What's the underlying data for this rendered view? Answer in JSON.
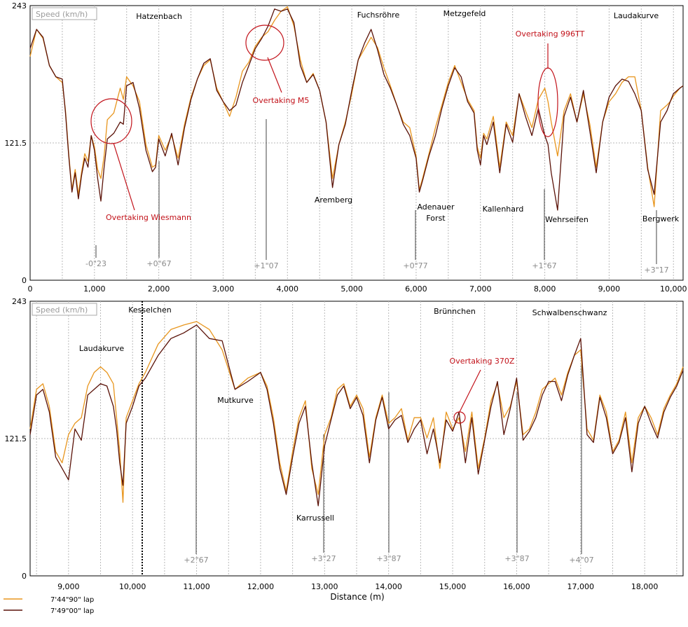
{
  "chart_data": [
    {
      "type": "line",
      "box_label": "Speed (km/h)",
      "ylim": [
        0,
        243
      ],
      "yticks": [
        0,
        121.5,
        243
      ],
      "xlim": [
        0,
        10150
      ],
      "xticks": [
        0,
        1000,
        2000,
        3000,
        4000,
        5000,
        6000,
        7000,
        8000,
        9000,
        10000
      ],
      "grid": "x-every-500-dotted-y-mid-dotted",
      "series": [
        {
          "name": "7'44\"90\" lap",
          "color": "#e8961e",
          "x": [
            0,
            100,
            200,
            300,
            400,
            500,
            550,
            600,
            650,
            700,
            750,
            800,
            850,
            900,
            950,
            1000,
            1050,
            1100,
            1150,
            1200,
            1300,
            1400,
            1450,
            1500,
            1600,
            1700,
            1800,
            1900,
            1950,
            2000,
            2100,
            2200,
            2300,
            2400,
            2500,
            2600,
            2700,
            2800,
            2900,
            3000,
            3100,
            3200,
            3300,
            3400,
            3500,
            3600,
            3700,
            3800,
            3900,
            4000,
            4100,
            4200,
            4300,
            4400,
            4500,
            4600,
            4700,
            4800,
            4900,
            5000,
            5100,
            5200,
            5300,
            5400,
            5500,
            5600,
            5700,
            5800,
            5900,
            6000,
            6050,
            6100,
            6200,
            6300,
            6400,
            6500,
            6600,
            6700,
            6800,
            6900,
            6950,
            7000,
            7050,
            7100,
            7200,
            7300,
            7400,
            7500,
            7600,
            7700,
            7800,
            7900,
            8000,
            8050,
            8100,
            8200,
            8300,
            8400,
            8500,
            8600,
            8700,
            8800,
            8900,
            9000,
            9100,
            9200,
            9300,
            9400,
            9500,
            9600,
            9700,
            9800,
            9900,
            9950,
            10000,
            10100,
            10150
          ],
          "y": [
            198,
            222,
            214,
            190,
            180,
            175,
            150,
            112,
            80,
            98,
            76,
            96,
            112,
            105,
            128,
            118,
            98,
            90,
            110,
            142,
            148,
            170,
            160,
            180,
            172,
            158,
            120,
            100,
            102,
            128,
            115,
            128,
            108,
            138,
            162,
            178,
            190,
            195,
            170,
            158,
            145,
            162,
            185,
            193,
            207,
            215,
            220,
            230,
            238,
            242,
            225,
            195,
            175,
            183,
            168,
            140,
            90,
            120,
            140,
            165,
            195,
            205,
            215,
            206,
            188,
            172,
            155,
            140,
            135,
            110,
            80,
            90,
            112,
            135,
            155,
            175,
            190,
            175,
            160,
            150,
            118,
            108,
            130,
            125,
            145,
            100,
            140,
            128,
            165,
            150,
            135,
            160,
            170,
            158,
            140,
            110,
            150,
            165,
            140,
            165,
            138,
            100,
            140,
            158,
            165,
            175,
            180,
            180,
            150,
            100,
            65,
            150,
            155,
            158,
            163,
            170,
            172
          ]
        },
        {
          "name": "7'49\"00\" lap",
          "color": "#5a1208",
          "x": [
            0,
            100,
            200,
            300,
            400,
            500,
            550,
            600,
            650,
            700,
            750,
            800,
            850,
            900,
            950,
            1000,
            1050,
            1100,
            1150,
            1200,
            1300,
            1400,
            1450,
            1500,
            1600,
            1700,
            1800,
            1900,
            1950,
            2000,
            2100,
            2200,
            2300,
            2400,
            2500,
            2600,
            2700,
            2800,
            2900,
            3000,
            3100,
            3200,
            3300,
            3400,
            3500,
            3600,
            3700,
            3800,
            3900,
            4000,
            4100,
            4200,
            4300,
            4400,
            4500,
            4600,
            4700,
            4800,
            4900,
            5000,
            5100,
            5200,
            5300,
            5400,
            5500,
            5600,
            5700,
            5800,
            5900,
            6000,
            6050,
            6100,
            6200,
            6300,
            6400,
            6500,
            6600,
            6700,
            6800,
            6900,
            6950,
            7000,
            7050,
            7100,
            7200,
            7300,
            7400,
            7500,
            7600,
            7700,
            7800,
            7900,
            8000,
            8050,
            8100,
            8200,
            8300,
            8400,
            8500,
            8600,
            8700,
            8800,
            8900,
            9000,
            9100,
            9200,
            9300,
            9400,
            9500,
            9600,
            9700,
            9800,
            9900,
            9950,
            10000,
            10100,
            10150
          ],
          "y": [
            205,
            222,
            215,
            190,
            180,
            178,
            148,
            110,
            78,
            95,
            72,
            93,
            108,
            100,
            128,
            115,
            90,
            70,
            100,
            125,
            130,
            140,
            138,
            172,
            175,
            152,
            115,
            96,
            100,
            125,
            110,
            130,
            102,
            135,
            160,
            178,
            192,
            196,
            168,
            158,
            150,
            155,
            175,
            190,
            205,
            214,
            225,
            240,
            238,
            240,
            228,
            190,
            175,
            182,
            168,
            140,
            82,
            120,
            138,
            168,
            195,
            210,
            222,
            204,
            182,
            170,
            155,
            138,
            128,
            108,
            78,
            88,
            110,
            128,
            152,
            172,
            188,
            180,
            158,
            148,
            115,
            102,
            128,
            120,
            140,
            95,
            138,
            122,
            165,
            145,
            128,
            152,
            128,
            120,
            95,
            62,
            145,
            162,
            140,
            168,
            132,
            95,
            140,
            162,
            172,
            178,
            176,
            165,
            150,
            98,
            76,
            140,
            150,
            158,
            165,
            170,
            172
          ]
        }
      ],
      "annotations": [
        {
          "text": "Overtaking Wiesmann"
        },
        {
          "text": "Overtaking M5"
        },
        {
          "text": "Overtaking 996TT"
        }
      ],
      "corners": [
        "Hatzenbach",
        "Fuchsröhre",
        "Metzgefeld",
        "Laudakurve",
        "Aremberg",
        "Adenauer",
        "Forst",
        "Kallenhard",
        "Wehrseifen",
        "Bergwerk"
      ],
      "deltas": [
        "-0\"23",
        "+0\"67",
        "+1\"07",
        "+0\"77",
        "+1\"67",
        "+3\"17"
      ]
    },
    {
      "type": "line",
      "box_label": "Speed (km/h)",
      "ylim": [
        0,
        243
      ],
      "yticks": [
        0,
        121.5,
        243
      ],
      "xlim": [
        8400,
        18600
      ],
      "xticks": [
        9000,
        10000,
        11000,
        12000,
        13000,
        14000,
        15000,
        16000,
        17000,
        18000
      ],
      "grid": "x-every-500-dotted-y-mid-dotted",
      "xlabel": "Distance (m)",
      "series": [
        {
          "name": "7'44\"90\" lap",
          "color": "#e8961e",
          "x": [
            8400,
            8500,
            8600,
            8700,
            8800,
            8900,
            9000,
            9100,
            9200,
            9300,
            9400,
            9500,
            9600,
            9700,
            9750,
            9800,
            9850,
            9900,
            10000,
            10100,
            10200,
            10400,
            10600,
            10800,
            11000,
            11200,
            11400,
            11600,
            11800,
            12000,
            12100,
            12200,
            12300,
            12400,
            12500,
            12600,
            12700,
            12800,
            12900,
            13000,
            13100,
            13200,
            13300,
            13400,
            13500,
            13600,
            13700,
            13800,
            13900,
            14000,
            14100,
            14200,
            14300,
            14400,
            14500,
            14600,
            14700,
            14800,
            14900,
            15000,
            15100,
            15200,
            15300,
            15400,
            15500,
            15600,
            15700,
            15800,
            15900,
            16000,
            16100,
            16200,
            16300,
            16400,
            16500,
            16600,
            16700,
            16800,
            16900,
            17000,
            17100,
            17200,
            17300,
            17400,
            17500,
            17600,
            17700,
            17800,
            17900,
            18000,
            18100,
            18200,
            18300,
            18400,
            18500,
            18600
          ],
          "y": [
            130,
            165,
            170,
            150,
            110,
            100,
            125,
            135,
            140,
            168,
            180,
            185,
            180,
            170,
            140,
            110,
            65,
            140,
            155,
            170,
            180,
            205,
            218,
            222,
            225,
            218,
            200,
            165,
            175,
            180,
            168,
            140,
            100,
            75,
            110,
            140,
            155,
            95,
            72,
            125,
            140,
            165,
            170,
            150,
            160,
            148,
            105,
            140,
            160,
            135,
            140,
            148,
            120,
            140,
            140,
            122,
            140,
            95,
            145,
            130,
            140,
            110,
            145,
            95,
            122,
            155,
            170,
            140,
            150,
            172,
            125,
            130,
            145,
            165,
            170,
            175,
            160,
            180,
            195,
            200,
            130,
            120,
            160,
            145,
            110,
            120,
            145,
            100,
            140,
            150,
            140,
            125,
            148,
            160,
            170,
            185
          ]
        },
        {
          "name": "7'49\"00\" lap",
          "color": "#5a1208",
          "x": [
            8400,
            8500,
            8600,
            8700,
            8800,
            8900,
            9000,
            9100,
            9200,
            9300,
            9400,
            9500,
            9600,
            9700,
            9750,
            9800,
            9850,
            9900,
            10000,
            10100,
            10200,
            10400,
            10600,
            10800,
            11000,
            11200,
            11400,
            11600,
            11800,
            12000,
            12100,
            12200,
            12300,
            12400,
            12500,
            12600,
            12700,
            12800,
            12900,
            13000,
            13100,
            13200,
            13300,
            13400,
            13500,
            13600,
            13700,
            13800,
            13900,
            14000,
            14100,
            14200,
            14300,
            14400,
            14500,
            14600,
            14700,
            14800,
            14900,
            15000,
            15100,
            15200,
            15300,
            15400,
            15500,
            15600,
            15700,
            15800,
            15900,
            16000,
            16100,
            16200,
            16300,
            16400,
            16500,
            16600,
            16700,
            16800,
            16900,
            17000,
            17100,
            17200,
            17300,
            17400,
            17500,
            17600,
            17700,
            17800,
            17900,
            18000,
            18100,
            18200,
            18300,
            18400,
            18500,
            18600
          ],
          "y": [
            125,
            160,
            165,
            145,
            105,
            95,
            85,
            130,
            120,
            160,
            165,
            170,
            168,
            150,
            130,
            100,
            80,
            135,
            150,
            168,
            175,
            195,
            210,
            215,
            222,
            210,
            208,
            165,
            172,
            180,
            165,
            135,
            95,
            72,
            105,
            135,
            150,
            100,
            62,
            115,
            138,
            160,
            168,
            148,
            158,
            142,
            100,
            138,
            158,
            130,
            138,
            142,
            118,
            130,
            138,
            108,
            130,
            100,
            138,
            128,
            145,
            100,
            140,
            90,
            120,
            150,
            172,
            125,
            148,
            175,
            120,
            128,
            140,
            160,
            172,
            172,
            155,
            178,
            195,
            210,
            125,
            118,
            158,
            140,
            108,
            118,
            140,
            92,
            135,
            150,
            135,
            122,
            145,
            158,
            168,
            182
          ]
        }
      ],
      "annotations": [
        {
          "text": "Overtaking 370Z"
        }
      ],
      "corners": [
        "Laudakurve",
        "Kesselchen",
        "Mutkurve",
        "Karrussell",
        "Brünnchen",
        "Schwalbenschwanz"
      ],
      "deltas": [
        "+2\"67",
        "+3\"27",
        "+3\"87",
        "+3\"87",
        "+4\"07"
      ]
    }
  ],
  "texts": {
    "ylabels": [
      "243",
      "121.5",
      "0"
    ],
    "x1": [
      "0",
      "1,000",
      "2,000",
      "3,000",
      "4,000",
      "5,000",
      "6,000",
      "7,000",
      "8,000",
      "9,000",
      "10,000"
    ],
    "x2": [
      "9,000",
      "10,000",
      "11,000",
      "12,000",
      "13,000",
      "14,000",
      "15,000",
      "16,000",
      "17,000",
      "18,000"
    ]
  },
  "legend": [
    {
      "label": "7'44\"90\" lap",
      "color": "#e8961e"
    },
    {
      "label": "7'49\"00\" lap",
      "color": "#5a1208"
    }
  ]
}
